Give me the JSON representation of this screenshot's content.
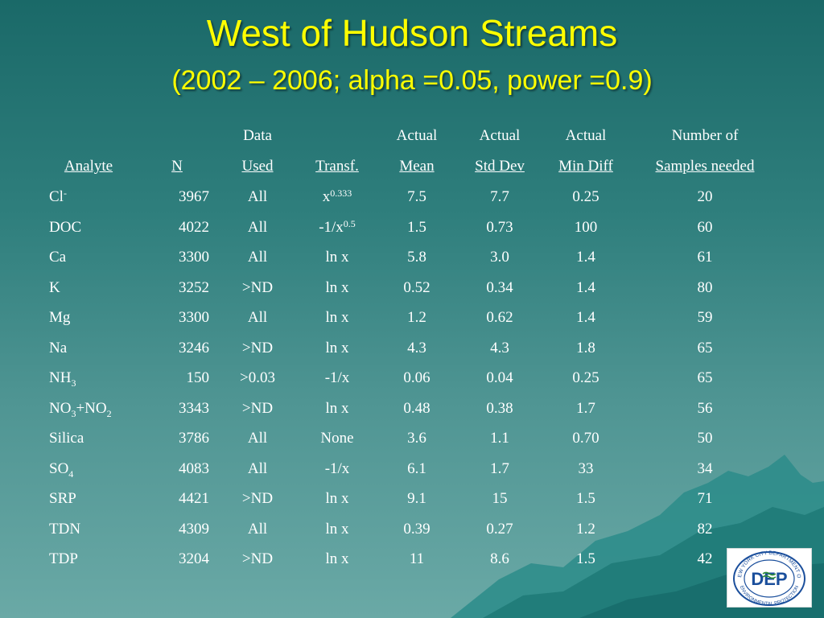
{
  "slide": {
    "title": "West of Hudson Streams",
    "subtitle": "(2002 – 2006; alpha =0.05, power =0.9)"
  },
  "table": {
    "header_top": {
      "data": "Data",
      "actual_mean": "Actual",
      "actual_sd": "Actual",
      "actual_md": "Actual",
      "samples": "Number of"
    },
    "header_bottom": {
      "analyte": "Analyte",
      "n": "N",
      "used": "Used",
      "transf": "Transf.",
      "mean": "Mean",
      "sd": "Std Dev",
      "md": "Min Diff",
      "samples": "Samples needed"
    },
    "rows": [
      {
        "analyte": "Cl",
        "analyte_sup": "-",
        "analyte_sub": "",
        "n": "3967",
        "used": "All",
        "transf": "x",
        "transf_sup": "0.333",
        "mean": "7.5",
        "sd": "7.7",
        "md": "0.25",
        "samples": "20"
      },
      {
        "analyte": "DOC",
        "analyte_sup": "",
        "analyte_sub": "",
        "n": "4022",
        "used": "All",
        "transf": "-1/x",
        "transf_sup": "0.5",
        "mean": "1.5",
        "sd": "0.73",
        "md": "100",
        "samples": "60"
      },
      {
        "analyte": "Ca",
        "analyte_sup": "",
        "analyte_sub": "",
        "n": "3300",
        "used": "All",
        "transf": "ln x",
        "transf_sup": "",
        "mean": "5.8",
        "sd": "3.0",
        "md": "1.4",
        "samples": "61"
      },
      {
        "analyte": "K",
        "analyte_sup": "",
        "analyte_sub": "",
        "n": "3252",
        "used": ">ND",
        "transf": "ln x",
        "transf_sup": "",
        "mean": "0.52",
        "sd": "0.34",
        "md": "1.4",
        "samples": "80"
      },
      {
        "analyte": "Mg",
        "analyte_sup": "",
        "analyte_sub": "",
        "n": "3300",
        "used": "All",
        "transf": "ln x",
        "transf_sup": "",
        "mean": "1.2",
        "sd": "0.62",
        "md": "1.4",
        "samples": "59"
      },
      {
        "analyte": "Na",
        "analyte_sup": "",
        "analyte_sub": "",
        "n": "3246",
        "used": ">ND",
        "transf": "ln x",
        "transf_sup": "",
        "mean": "4.3",
        "sd": "4.3",
        "md": "1.8",
        "samples": "65"
      },
      {
        "analyte": "NH",
        "analyte_sup": "",
        "analyte_sub": "3",
        "n": "150",
        "used": ">0.03",
        "transf": "-1/x",
        "transf_sup": "",
        "mean": "0.06",
        "sd": "0.04",
        "md": "0.25",
        "samples": "65"
      },
      {
        "analyte": "NO3+NO2",
        "analyte_sup": "",
        "analyte_sub": "",
        "n": "3343",
        "used": ">ND",
        "transf": "ln x",
        "transf_sup": "",
        "mean": "0.48",
        "sd": "0.38",
        "md": "1.7",
        "samples": "56"
      },
      {
        "analyte": "Silica",
        "analyte_sup": "",
        "analyte_sub": "",
        "n": "3786",
        "used": "All",
        "transf": "None",
        "transf_sup": "",
        "mean": "3.6",
        "sd": "1.1",
        "md": "0.70",
        "samples": "50"
      },
      {
        "analyte": "SO",
        "analyte_sup": "",
        "analyte_sub": "4",
        "n": "4083",
        "used": "All",
        "transf": "-1/x",
        "transf_sup": "",
        "mean": "6.1",
        "sd": "1.7",
        "md": "33",
        "samples": "34"
      },
      {
        "analyte": "SRP",
        "analyte_sup": "",
        "analyte_sub": "",
        "n": "4421",
        "used": ">ND",
        "transf": "ln x",
        "transf_sup": "",
        "mean": "9.1",
        "sd": "15",
        "md": "1.5",
        "samples": "71"
      },
      {
        "analyte": "TDN",
        "analyte_sup": "",
        "analyte_sub": "",
        "n": "4309",
        "used": "All",
        "transf": "ln x",
        "transf_sup": "",
        "mean": "0.39",
        "sd": "0.27",
        "md": "1.2",
        "samples": "82"
      },
      {
        "analyte": "TDP",
        "analyte_sup": "",
        "analyte_sub": "",
        "n": "3204",
        "used": ">ND",
        "transf": "ln x",
        "transf_sup": "",
        "mean": "11",
        "sd": "8.6",
        "md": "1.5",
        "samples": "42"
      }
    ],
    "no3_parts": {
      "a": "NO",
      "a_sub": "3",
      "b": "+NO",
      "b_sub": "2"
    }
  },
  "logo": {
    "ring_top": "NEW YORK CITY DEPARTMENT OF",
    "ring_bottom": "ENVIRONMENTAL PROTECTION",
    "wordmark": "DEP"
  },
  "colors": {
    "title": "#ffff00",
    "text": "#ffffff",
    "logo_blue": "#1b4f9c",
    "logo_green": "#2f8f3a"
  }
}
